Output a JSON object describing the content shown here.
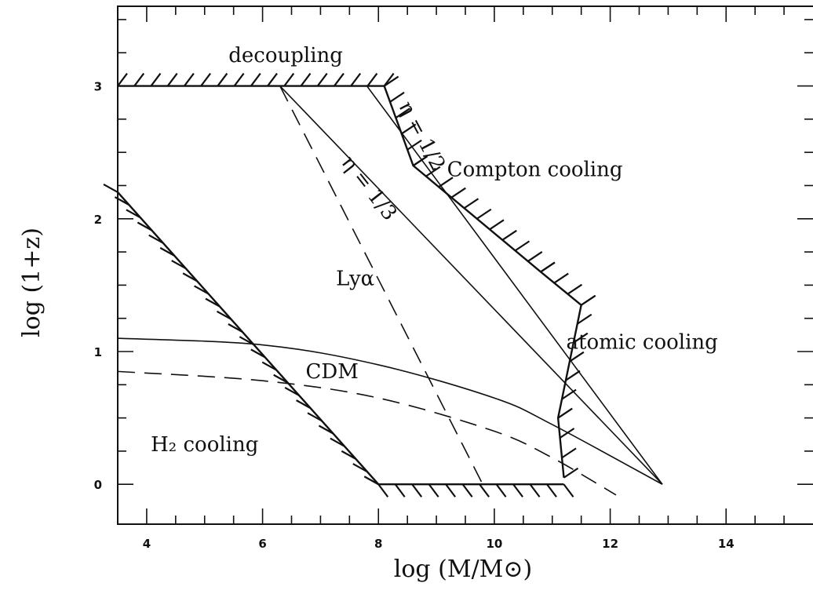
{
  "chart_data": {
    "type": "line",
    "xlabel": "log (M/M⊙)",
    "ylabel": "log (1+z)",
    "xlim": [
      3.5,
      15.5
    ],
    "ylim": [
      -0.3,
      3.6
    ],
    "xticks": [
      4,
      6,
      8,
      10,
      12,
      14
    ],
    "yticks": [
      0,
      1,
      2,
      3
    ],
    "series": [
      {
        "name": "CDM",
        "style": "solid",
        "x": [
          3.5,
          6,
          8,
          10,
          11,
          12.9
        ],
        "y": [
          1.1,
          1.05,
          0.9,
          0.65,
          0.45,
          0.0
        ]
      },
      {
        "name": "",
        "style": "dashed",
        "x": [
          3.5,
          6,
          8,
          10,
          11,
          12.1
        ],
        "y": [
          0.85,
          0.78,
          0.65,
          0.4,
          0.2,
          -0.08
        ]
      },
      {
        "name": "Lyα",
        "style": "dashed",
        "x": [
          6.3,
          9.8
        ],
        "y": [
          3.0,
          0.0
        ]
      },
      {
        "name": "η = 1/3",
        "style": "solid",
        "x": [
          6.3,
          12.9
        ],
        "y": [
          3.0,
          0.0
        ]
      },
      {
        "name": "η = 1/2",
        "style": "solid",
        "x": [
          7.8,
          12.9
        ],
        "y": [
          3.0,
          0.0
        ]
      }
    ],
    "boundaries": [
      {
        "name": "decoupling",
        "x": [
          3.5,
          8.1
        ],
        "y": [
          3.0,
          3.0
        ]
      },
      {
        "name": "Compton cooling",
        "x": [
          8.1,
          8.6,
          10.8,
          11.5
        ],
        "y": [
          3.0,
          2.4,
          1.6,
          1.35
        ]
      },
      {
        "name": "atomic cooling",
        "x": [
          11.5,
          11.1,
          11.2
        ],
        "y": [
          1.35,
          0.5,
          0.05
        ]
      },
      {
        "name": "H₂ cooling",
        "x": [
          3.5,
          8.0
        ],
        "y": [
          2.2,
          0.0
        ]
      },
      {
        "name": "",
        "x": [
          8.0,
          11.2
        ],
        "y": [
          0.0,
          0.0
        ]
      }
    ],
    "annotations": [
      {
        "text": "decoupling",
        "x": 6.4,
        "y": 3.18
      },
      {
        "text": "Compton cooling",
        "x": 10.7,
        "y": 2.32
      },
      {
        "text": "η = 1/2",
        "x": 8.65,
        "y": 2.6
      },
      {
        "text": "η = 1/3",
        "x": 7.75,
        "y": 2.2
      },
      {
        "text": "Lyα",
        "x": 7.6,
        "y": 1.5
      },
      {
        "text": "atomic cooling",
        "x": 12.55,
        "y": 1.02
      },
      {
        "text": "CDM",
        "x": 7.2,
        "y": 0.8
      },
      {
        "text": "H₂ cooling",
        "x": 5.0,
        "y": 0.25
      }
    ]
  }
}
